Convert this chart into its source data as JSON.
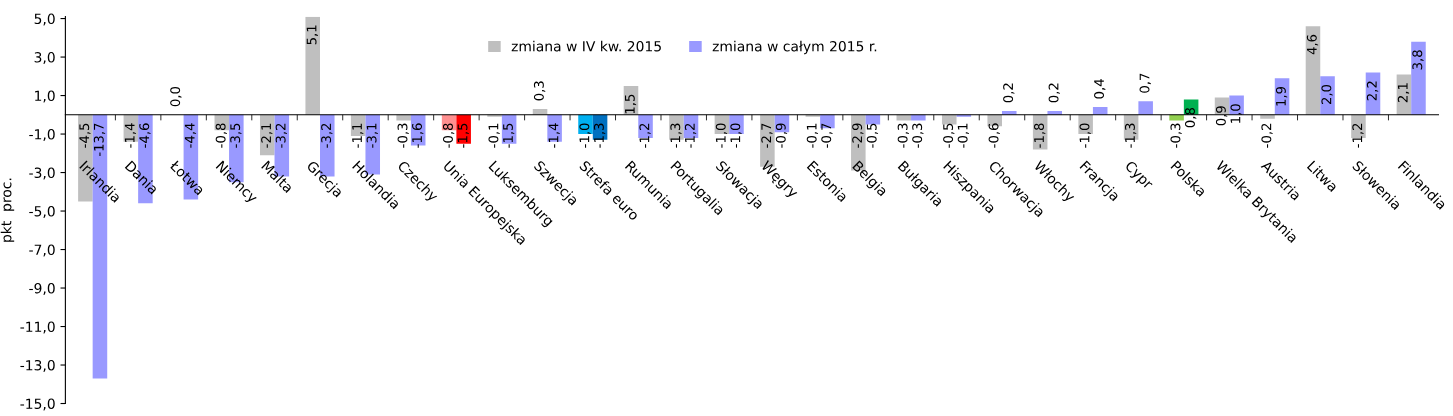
{
  "chart_data": {
    "type": "bar",
    "ylabel": "pkt  proc.",
    "categories": [
      "Irlandia",
      "Dania",
      "Łotwa",
      "Niemcy",
      "Malta",
      "Grecja",
      "Holandia",
      "Czechy",
      "Unia Europejska",
      "Luksemburg",
      "Szwecja",
      "Strefa euro",
      "Rumunia",
      "Portugalia",
      "Słowacja",
      "Węgry",
      "Estonia",
      "Belgia",
      "Bułgaria",
      "Hiszpania",
      "Chorwacja",
      "Włochy",
      "Francja",
      "Cypr",
      "Polska",
      "Wielka Brytania",
      "Austria",
      "Litwa",
      "Słowenia",
      "Finlandia"
    ],
    "series": [
      {
        "name": "zmiana w IV kw. 2015",
        "color": "#bfbfbf",
        "values": [
          -4.5,
          -1.4,
          0.0,
          -0.8,
          -2.1,
          5.1,
          -1.1,
          -0.3,
          -0.8,
          -0.1,
          0.3,
          -1.0,
          1.5,
          -1.3,
          -1.0,
          -2.7,
          -0.1,
          -2.9,
          -0.3,
          -0.5,
          -0.6,
          -1.8,
          -1.0,
          -1.3,
          -0.3,
          0.9,
          -0.2,
          4.6,
          -1.2,
          2.1
        ],
        "colors": [
          "#bfbfbf",
          "#bfbfbf",
          "#bfbfbf",
          "#bfbfbf",
          "#bfbfbf",
          "#bfbfbf",
          "#bfbfbf",
          "#bfbfbf",
          "#ff8f8f",
          "#bfbfbf",
          "#bfbfbf",
          "#00b0f0",
          "#bfbfbf",
          "#bfbfbf",
          "#bfbfbf",
          "#bfbfbf",
          "#bfbfbf",
          "#bfbfbf",
          "#bfbfbf",
          "#bfbfbf",
          "#bfbfbf",
          "#bfbfbf",
          "#bfbfbf",
          "#bfbfbf",
          "#92d050",
          "#bfbfbf",
          "#bfbfbf",
          "#bfbfbf",
          "#bfbfbf",
          "#bfbfbf"
        ],
        "value_labels": [
          "-4,5",
          "-1,4",
          "0,0",
          "-0,8",
          "-2,1",
          "5,1",
          "-1,1",
          "-0,3",
          "-0,8",
          "-0,1",
          "0,3",
          "-1,0",
          "1,5",
          "-1,3",
          "-1,0",
          "-2,7",
          "-0,1",
          "-2,9",
          "-0,3",
          "-0,5",
          "-0,6",
          "-1,8",
          "-1,0",
          "-1,3",
          "-0,3",
          "0,9",
          "-0,2",
          "4,6",
          "-1,2",
          "2,1"
        ]
      },
      {
        "name": "zmiana w całym 2015 r.",
        "color": "#9999ff",
        "values": [
          -13.7,
          -4.6,
          -4.4,
          -3.5,
          -3.2,
          -3.2,
          -3.1,
          -1.6,
          -1.5,
          -1.5,
          -1.4,
          -1.3,
          -1.2,
          -1.2,
          -1.0,
          -0.9,
          -0.7,
          -0.5,
          -0.3,
          -0.1,
          0.2,
          0.2,
          0.4,
          0.7,
          0.8,
          1.0,
          1.9,
          2.0,
          2.2,
          3.8
        ],
        "colors": [
          "#9999ff",
          "#9999ff",
          "#9999ff",
          "#9999ff",
          "#9999ff",
          "#9999ff",
          "#9999ff",
          "#9999ff",
          "#ff0000",
          "#9999ff",
          "#9999ff",
          "#0070c0",
          "#9999ff",
          "#9999ff",
          "#9999ff",
          "#9999ff",
          "#9999ff",
          "#9999ff",
          "#9999ff",
          "#9999ff",
          "#9999ff",
          "#9999ff",
          "#9999ff",
          "#9999ff",
          "#00b050",
          "#9999ff",
          "#9999ff",
          "#9999ff",
          "#9999ff",
          "#9999ff"
        ],
        "value_labels": [
          "-13,7",
          "-4,6",
          "-4,4",
          "-3,5",
          "-3,2",
          "-3,2",
          "-3,1",
          "-1,6",
          "-1,5",
          "-1,5",
          "-1,4",
          "-1,3",
          "-1,2",
          "-1,2",
          "-1,0",
          "-0,9",
          "-0,7",
          "-0,5",
          "-0,3",
          "-0,1",
          "0,2",
          "0,2",
          "0,4",
          "0,7",
          "0,8",
          "1,0",
          "1,9",
          "2,0",
          "2,2",
          "3,8"
        ]
      }
    ],
    "ylim": [
      -15,
      5.1
    ],
    "yticks": [
      {
        "value": -15,
        "label": "-15,0"
      },
      {
        "value": -13,
        "label": "-13,0"
      },
      {
        "value": -11,
        "label": "-11,0"
      },
      {
        "value": -9,
        "label": "-9,0"
      },
      {
        "value": -7,
        "label": "-7,0"
      },
      {
        "value": -5,
        "label": "-5,0"
      },
      {
        "value": -3,
        "label": "-3,0"
      },
      {
        "value": -1,
        "label": "-1,0"
      },
      {
        "value": 1,
        "label": "1,0"
      },
      {
        "value": 3,
        "label": "3,0"
      },
      {
        "value": 5,
        "label": "5,0"
      }
    ],
    "grid": false,
    "legend": "top"
  }
}
